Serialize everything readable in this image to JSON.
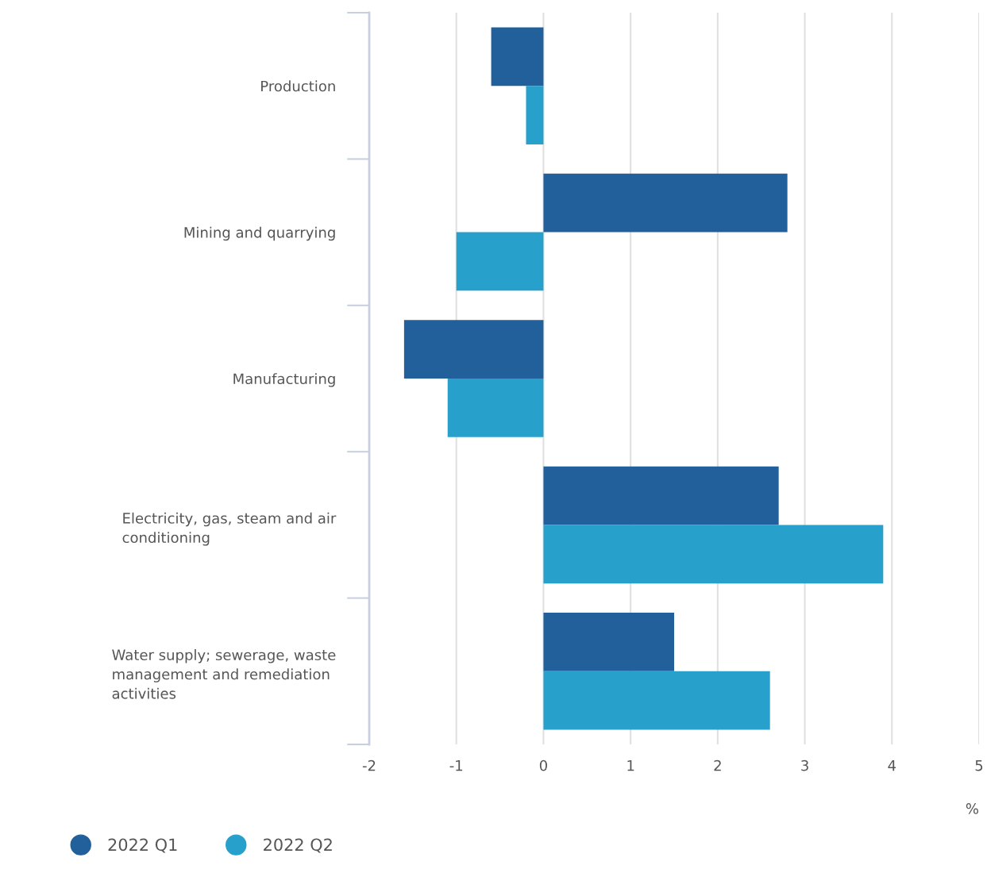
{
  "chart_data": {
    "type": "bar",
    "orientation": "horizontal",
    "xlabel": "%",
    "categories": [
      "Production",
      "Mining and quarrying",
      "Manufacturing",
      "Electricity, gas, steam and air conditioning",
      "Water supply; sewerage, waste management and remediation activities"
    ],
    "series": [
      {
        "name": "2022 Q1",
        "color": "#21609a",
        "values": [
          -0.6,
          2.8,
          -1.6,
          2.7,
          1.5
        ]
      },
      {
        "name": "2022 Q2",
        "color": "#27a0cc",
        "values": [
          -0.2,
          -1.0,
          -1.1,
          3.9,
          2.6
        ]
      }
    ],
    "xlim": [
      -2,
      5
    ],
    "xticks": [
      -2,
      -1,
      0,
      1,
      2,
      3,
      4,
      5
    ],
    "grid": "x",
    "legend": "bottom"
  }
}
